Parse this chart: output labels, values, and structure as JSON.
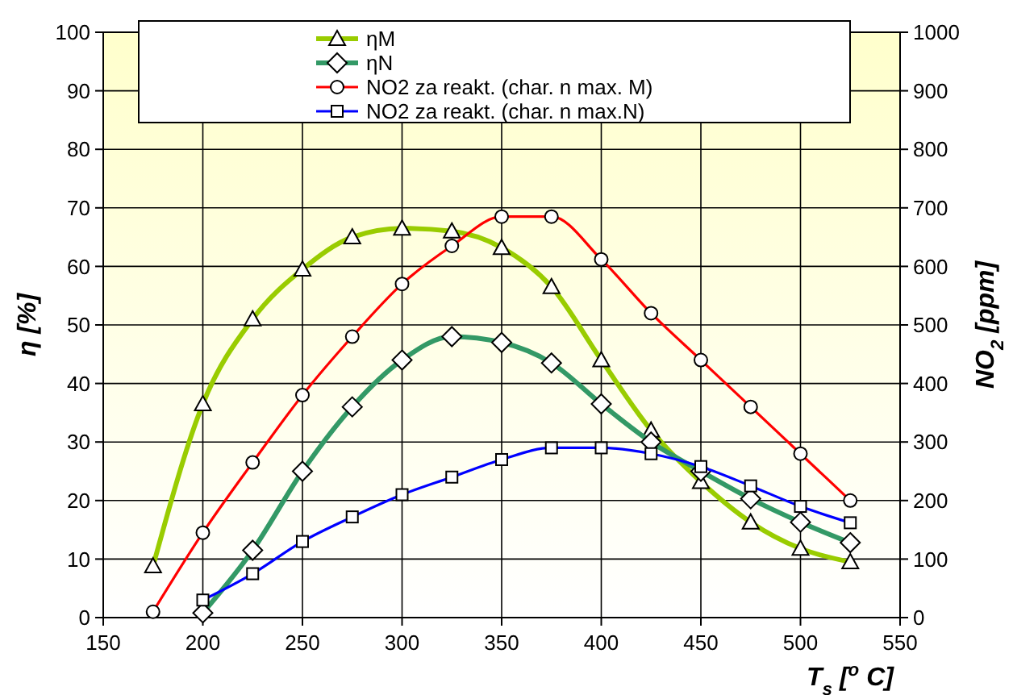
{
  "chart_data": {
    "type": "line",
    "xlabel": "T$_{s}$  [$^{o}$ C]",
    "ylabel": "η [%]",
    "y2label": "NO$_{2}$ [ppm]",
    "x": [
      175,
      200,
      225,
      250,
      275,
      300,
      325,
      350,
      375,
      400,
      425,
      450,
      475,
      500,
      525
    ],
    "xlim": [
      150,
      550
    ],
    "xticks": [
      150,
      200,
      250,
      300,
      350,
      400,
      450,
      500,
      550
    ],
    "ylim": [
      0,
      100
    ],
    "yticks": [
      0,
      10,
      20,
      30,
      40,
      50,
      60,
      70,
      80,
      90,
      100
    ],
    "y2lim": [
      0,
      1000
    ],
    "y2ticks": [
      0,
      100,
      200,
      300,
      400,
      500,
      600,
      700,
      800,
      900,
      1000
    ],
    "grid": true,
    "legend": "top",
    "line_style": "solid",
    "series": [
      {
        "name": "ηM",
        "color": "#99cc00",
        "marker": "triangle",
        "values": [
          8.8,
          36.5,
          51,
          59.5,
          65,
          66.5,
          66,
          63.2,
          56.5,
          44,
          32,
          23.2,
          16.3,
          11.8,
          9.5
        ]
      },
      {
        "name": "ηN",
        "color": "#339966",
        "marker": "diamond",
        "values": [
          null,
          0.8,
          11.5,
          25,
          36,
          44,
          48,
          47,
          43.5,
          36.5,
          30,
          25,
          20.3,
          16.3,
          12.8
        ]
      },
      {
        "name": "NO2 za reakt. (char. n max. M)",
        "color": "#ff0000",
        "marker": "circle",
        "axis": "y2",
        "values": [
          10,
          145,
          265,
          380,
          480,
          570,
          635,
          685,
          685,
          612,
          520,
          440,
          360,
          280,
          200
        ]
      },
      {
        "name": "NO2 za reakt. (char. n max.N)",
        "color": "#0000ff",
        "marker": "square",
        "axis": "y2",
        "values": [
          null,
          30,
          75,
          130,
          172,
          210,
          240,
          270,
          290,
          290,
          280,
          258,
          225,
          190,
          162
        ]
      }
    ]
  }
}
